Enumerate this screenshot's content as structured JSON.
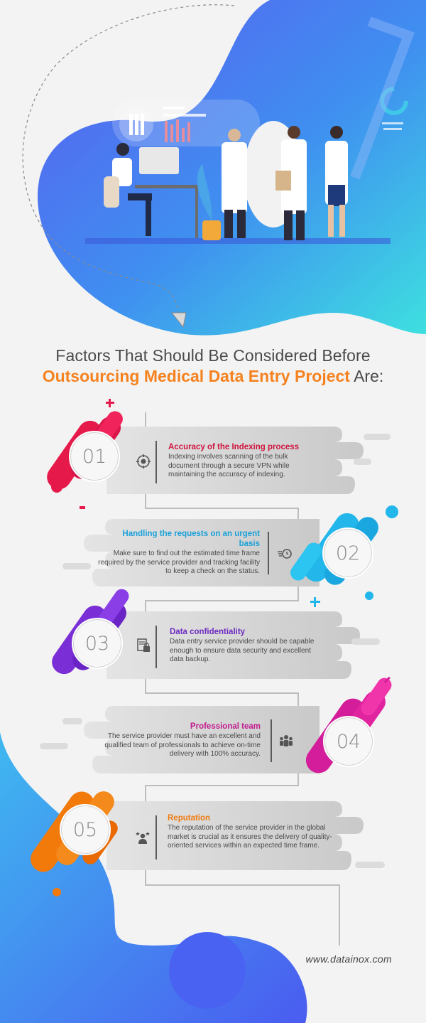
{
  "headline": {
    "line1": "Factors That Should Be Considered Before",
    "line2_accent": "Outsourcing Medical Data Entry Project",
    "line2_rest": " Are:"
  },
  "steps": [
    {
      "number": "01",
      "title": "Accuracy of the Indexing process",
      "desc": "Indexing involves scanning of the bulk document through a secure VPN while maintaining the accuracy of indexing.",
      "color": "#d0143e",
      "icon": "target-icon"
    },
    {
      "number": "02",
      "title": "Handling the requests on an urgent basis",
      "desc": "Make sure to find out the estimated time frame required by the service provider and tracking facility to keep a check on the status.",
      "color": "#1ba1d9",
      "icon": "fast-clock-icon"
    },
    {
      "number": "03",
      "title": "Data confidentiality",
      "desc": "Data entry service provider should be capable enough to ensure data security and excellent data backup.",
      "color": "#6d2bc0",
      "icon": "secure-document-icon"
    },
    {
      "number": "04",
      "title": "Professional team",
      "desc": "The service provider must have an excellent and qualified team of professionals to achieve on-time delivery with 100% accuracy.",
      "color": "#c21a8f",
      "icon": "team-icon"
    },
    {
      "number": "05",
      "title": "Reputation",
      "desc": "The reputation of the service provider in the global market is crucial as it ensures the delivery of quality-oriented services within an expected time frame.",
      "color": "#f07a10",
      "icon": "reputation-icon"
    }
  ],
  "footer": {
    "website": "www.datainox.com"
  }
}
